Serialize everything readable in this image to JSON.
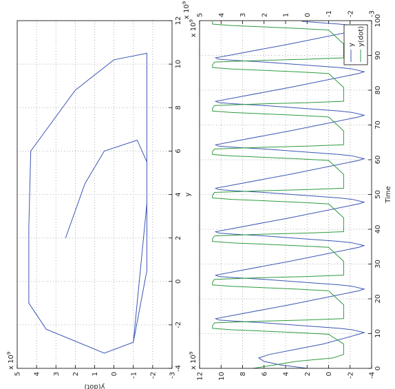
{
  "chart_data": [
    {
      "type": "line",
      "xlabel": "y",
      "ylabel": "y(dot)",
      "color": "#3a55b4",
      "grid": true,
      "xlim": [
        -4,
        12
      ],
      "xticks": [
        -4,
        -2,
        0,
        2,
        4,
        6,
        8,
        10,
        12
      ],
      "ylim": [
        -3,
        5
      ],
      "yticks": [
        -3,
        -2,
        -1,
        0,
        1,
        2,
        3,
        4,
        5
      ],
      "x_multiplier": {
        "base": "x 10",
        "power": "9"
      },
      "y_multiplier": {
        "base": "x 10",
        "power": "9"
      },
      "x": [
        2,
        4.5,
        6,
        6.5,
        5.5,
        0.5,
        -2.8,
        -3.3,
        -2.2,
        -1.0,
        2.5,
        6.0,
        8.8,
        10.2,
        10.5,
        3.6,
        -2.8,
        -3.3,
        -2.2,
        -1.0,
        2.5,
        6.0,
        8.8,
        10.2,
        10.5,
        3.6,
        -2.8,
        -3.3,
        -2.2,
        -1.0,
        2.5,
        6.0,
        8.8,
        10.2,
        10.5,
        3.6,
        -2.8,
        -3.3,
        -2.2,
        -1.0,
        2.5,
        6.0,
        8.8,
        10.2,
        10.5,
        3.6,
        -2.8,
        -3.3,
        -2.2,
        -1.0,
        2.5,
        6.0,
        8.8,
        10.2,
        10.5,
        3.6,
        -2.8,
        -3.3,
        -2.2,
        -1.0,
        2.5,
        6.0,
        8.8,
        10.2,
        10.5,
        3.6,
        -2.8,
        -3.3,
        -2.2,
        -1.0,
        2.5,
        6.0,
        8.8,
        10.2,
        10.5,
        3.6,
        -2.8,
        -3.3,
        -2.2,
        -1.0,
        2.5
      ],
      "values": [
        2.5,
        1.5,
        0.5,
        -1.2,
        -1.7,
        -1.7,
        -1.0,
        0.5,
        3.5,
        4.4,
        4.4,
        4.3,
        2.0,
        0,
        -1.7,
        -1.7,
        -1.0,
        0.5,
        3.5,
        4.4,
        4.4,
        4.3,
        2.0,
        0,
        -1.7,
        -1.7,
        -1.0,
        0.5,
        3.5,
        4.4,
        4.4,
        4.3,
        2.0,
        0,
        -1.7,
        -1.7,
        -1.0,
        0.5,
        3.5,
        4.4,
        4.4,
        4.3,
        2.0,
        0,
        -1.7,
        -1.7,
        -1.0,
        0.5,
        3.5,
        4.4,
        4.4,
        4.3,
        2.0,
        0,
        -1.7,
        -1.7,
        -1.0,
        0.5,
        3.5,
        4.4,
        4.4,
        4.3,
        2.0,
        0,
        -1.7,
        -1.7,
        -1.0,
        0.5,
        3.5,
        4.4,
        4.4,
        4.3,
        2.0,
        0,
        -1.7,
        -1.7,
        -1.0,
        0.5,
        3.5,
        4.4,
        4.4
      ]
    },
    {
      "type": "line",
      "xlabel": "Time",
      "grid": true,
      "legend": "southeast",
      "xlim": [
        0,
        100
      ],
      "xticks": [
        0,
        10,
        20,
        30,
        40,
        50,
        60,
        70,
        80,
        90,
        100
      ],
      "ylim": [
        -4,
        12
      ],
      "yticks": [
        -4,
        -2,
        0,
        2,
        4,
        6,
        8,
        10,
        12
      ],
      "y_color": "#3a55b4",
      "y2lim": [
        -3,
        5
      ],
      "y2ticks": [
        -3,
        -2,
        -1,
        0,
        1,
        2,
        3,
        4,
        5
      ],
      "y2_color": "#2e9a3e",
      "y_multiplier": {
        "base": "x 10",
        "power": "9"
      },
      "y2_multiplier": {
        "base": "x 10",
        "power": "9"
      },
      "x": [
        0,
        1,
        2,
        3,
        4,
        7,
        9.8,
        10.3,
        11.1,
        11.5,
        12.3,
        13.1,
        13.6,
        13.9,
        14.3,
        18.3,
        22.3,
        22.8,
        23.6,
        24,
        24.8,
        25.6,
        26.1,
        26.4,
        26.8,
        30.8,
        34.8,
        35.3,
        36.1,
        36.5,
        37.3,
        38.1,
        38.6,
        38.9,
        39.3,
        43.3,
        47.3,
        47.8,
        48.6,
        49,
        49.8,
        50.6,
        51.1,
        51.4,
        51.8,
        55.8,
        59.8,
        60.3,
        61.1,
        61.5,
        62.3,
        63.1,
        63.6,
        63.9,
        64.3,
        68.3,
        72.3,
        72.8,
        73.6,
        74,
        74.8,
        75.6,
        76.1,
        76.4,
        76.8,
        80.8,
        84.8,
        85.3,
        86.1,
        86.5,
        87.3,
        88.1,
        88.6,
        88.9,
        89.3,
        93.3,
        97.3,
        97.8,
        98.6,
        99,
        99.8
      ],
      "series": [
        {
          "name": "y",
          "color": "#3a55b4",
          "values": [
            2,
            4.5,
            6,
            6.5,
            5.5,
            0.5,
            -2.8,
            -3.3,
            -2.2,
            -1.0,
            2.5,
            6.0,
            8.8,
            10.2,
            10.5,
            3.6,
            -2.8,
            -3.3,
            -2.2,
            -1.0,
            2.5,
            6.0,
            8.8,
            10.2,
            10.5,
            3.6,
            -2.8,
            -3.3,
            -2.2,
            -1.0,
            2.5,
            6.0,
            8.8,
            10.2,
            10.5,
            3.6,
            -2.8,
            -3.3,
            -2.2,
            -1.0,
            2.5,
            6.0,
            8.8,
            10.2,
            10.5,
            3.6,
            -2.8,
            -3.3,
            -2.2,
            -1.0,
            2.5,
            6.0,
            8.8,
            10.2,
            10.5,
            3.6,
            -2.8,
            -3.3,
            -2.2,
            -1.0,
            2.5,
            6.0,
            8.8,
            10.2,
            10.5,
            3.6,
            -2.8,
            -3.3,
            -2.2,
            -1.0,
            2.5,
            6.0,
            8.8,
            10.2,
            10.5,
            3.6,
            -2.8,
            -3.3,
            -2.2,
            -1.0,
            2.5
          ]
        },
        {
          "name": "y(dot)",
          "color": "#2e9a3e",
          "axis": "y2",
          "values": [
            2.5,
            1.5,
            0.5,
            -1.2,
            -1.7,
            -1.7,
            -1.0,
            0.5,
            3.5,
            4.4,
            4.4,
            4.3,
            2.0,
            0,
            -1.7,
            -1.7,
            -1.0,
            0.5,
            3.5,
            4.4,
            4.4,
            4.3,
            2.0,
            0,
            -1.7,
            -1.7,
            -1.0,
            0.5,
            3.5,
            4.4,
            4.4,
            4.3,
            2.0,
            0,
            -1.7,
            -1.7,
            -1.0,
            0.5,
            3.5,
            4.4,
            4.4,
            4.3,
            2.0,
            0,
            -1.7,
            -1.7,
            -1.0,
            0.5,
            3.5,
            4.4,
            4.4,
            4.3,
            2.0,
            0,
            -1.7,
            -1.7,
            -1.0,
            0.5,
            3.5,
            4.4,
            4.4,
            4.3,
            2.0,
            0,
            -1.7,
            -1.7,
            -1.0,
            0.5,
            3.5,
            4.4,
            4.4,
            4.3,
            2.0,
            0,
            -1.7,
            -1.7,
            -1.0,
            0.5,
            3.5,
            4.4,
            4.4
          ]
        }
      ]
    }
  ]
}
